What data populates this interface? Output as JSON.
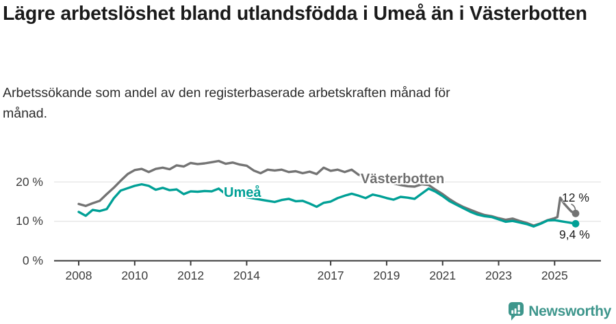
{
  "header": {
    "title": "Lägre arbetslöshet bland utlandsfödda i Umeå än i Västerbotten",
    "subtitle": "Arbetssökande som andel av den registerbaserade arbetskraften månad för månad."
  },
  "chart_data": {
    "type": "line",
    "unit": "%",
    "grid": "horizontal",
    "legend": "inline-labels",
    "x_range": [
      2008,
      2025.75
    ],
    "y_axis": {
      "range": [
        0,
        27
      ],
      "ticks": [
        {
          "v": 0,
          "label": "0 %"
        },
        {
          "v": 10,
          "label": "10 %"
        },
        {
          "v": 20,
          "label": "20 %"
        }
      ]
    },
    "x_axis": {
      "ticks": [
        {
          "t": 2008,
          "label": "2008"
        },
        {
          "t": 2010,
          "label": "2010"
        },
        {
          "t": 2012,
          "label": "2012"
        },
        {
          "t": 2014,
          "label": "2014"
        },
        {
          "t": 2017,
          "label": "2017"
        },
        {
          "t": 2019,
          "label": "2019"
        },
        {
          "t": 2021,
          "label": "2021"
        },
        {
          "t": 2023,
          "label": "2023"
        },
        {
          "t": 2025,
          "label": "2025"
        }
      ]
    },
    "series": [
      {
        "name": "vasterbotten",
        "label": "Västerbotten",
        "color": "#737373",
        "end_label": "12 %",
        "end_value": 12.0,
        "points": [
          [
            2008.0,
            14.4
          ],
          [
            2008.25,
            13.9
          ],
          [
            2008.5,
            14.6
          ],
          [
            2008.75,
            15.2
          ],
          [
            2009.0,
            16.9
          ],
          [
            2009.25,
            18.5
          ],
          [
            2009.5,
            20.3
          ],
          [
            2009.75,
            22.0
          ],
          [
            2010.0,
            23.0
          ],
          [
            2010.25,
            23.3
          ],
          [
            2010.5,
            22.5
          ],
          [
            2010.75,
            23.3
          ],
          [
            2011.0,
            23.6
          ],
          [
            2011.25,
            23.2
          ],
          [
            2011.5,
            24.2
          ],
          [
            2011.75,
            23.9
          ],
          [
            2012.0,
            24.8
          ],
          [
            2012.25,
            24.5
          ],
          [
            2012.5,
            24.7
          ],
          [
            2012.75,
            25.0
          ],
          [
            2013.0,
            25.3
          ],
          [
            2013.25,
            24.6
          ],
          [
            2013.5,
            24.9
          ],
          [
            2013.75,
            24.4
          ],
          [
            2014.0,
            24.1
          ],
          [
            2014.25,
            22.9
          ],
          [
            2014.5,
            22.2
          ],
          [
            2014.75,
            23.1
          ],
          [
            2015.0,
            22.9
          ],
          [
            2015.25,
            23.1
          ],
          [
            2015.5,
            22.5
          ],
          [
            2015.75,
            22.7
          ],
          [
            2016.0,
            22.2
          ],
          [
            2016.25,
            22.6
          ],
          [
            2016.5,
            22.0
          ],
          [
            2016.75,
            23.6
          ],
          [
            2017.0,
            22.8
          ],
          [
            2017.25,
            23.1
          ],
          [
            2017.5,
            22.5
          ],
          [
            2017.75,
            23.1
          ],
          [
            2018.0,
            21.8
          ],
          [
            2018.25,
            21.4
          ],
          [
            2018.5,
            20.9
          ],
          [
            2018.75,
            20.4
          ],
          [
            2019.0,
            20.0
          ],
          [
            2019.25,
            19.6
          ],
          [
            2019.5,
            19.2
          ],
          [
            2019.75,
            18.9
          ],
          [
            2020.0,
            18.8
          ],
          [
            2020.25,
            19.4
          ],
          [
            2020.5,
            19.2
          ],
          [
            2020.75,
            18.0
          ],
          [
            2021.0,
            16.9
          ],
          [
            2021.25,
            15.6
          ],
          [
            2021.5,
            14.5
          ],
          [
            2021.75,
            13.6
          ],
          [
            2022.0,
            12.9
          ],
          [
            2022.25,
            12.2
          ],
          [
            2022.5,
            11.6
          ],
          [
            2022.75,
            11.3
          ],
          [
            2023.0,
            10.8
          ],
          [
            2023.25,
            10.4
          ],
          [
            2023.5,
            10.7
          ],
          [
            2023.75,
            10.1
          ],
          [
            2024.0,
            9.6
          ],
          [
            2024.25,
            8.9
          ],
          [
            2024.5,
            9.5
          ],
          [
            2024.75,
            10.3
          ],
          [
            2025.0,
            10.8
          ],
          [
            2025.1,
            11.1
          ],
          [
            2025.2,
            16.0
          ],
          [
            2025.35,
            14.4
          ],
          [
            2025.5,
            13.2
          ],
          [
            2025.6,
            12.5
          ],
          [
            2025.75,
            12.0
          ]
        ]
      },
      {
        "name": "umea",
        "label": "Umeå",
        "color": "#00A096",
        "end_label": "9,4 %",
        "end_value": 9.4,
        "points": [
          [
            2008.0,
            12.4
          ],
          [
            2008.25,
            11.4
          ],
          [
            2008.5,
            12.9
          ],
          [
            2008.75,
            12.6
          ],
          [
            2009.0,
            13.1
          ],
          [
            2009.25,
            15.8
          ],
          [
            2009.5,
            17.8
          ],
          [
            2009.75,
            18.4
          ],
          [
            2010.0,
            19.0
          ],
          [
            2010.25,
            19.4
          ],
          [
            2010.5,
            19.0
          ],
          [
            2010.75,
            18.0
          ],
          [
            2011.0,
            18.5
          ],
          [
            2011.25,
            17.9
          ],
          [
            2011.5,
            18.1
          ],
          [
            2011.75,
            16.9
          ],
          [
            2012.0,
            17.6
          ],
          [
            2012.25,
            17.5
          ],
          [
            2012.5,
            17.7
          ],
          [
            2012.75,
            17.6
          ],
          [
            2013.0,
            18.3
          ],
          [
            2013.25,
            16.9
          ],
          [
            2013.5,
            16.6
          ],
          [
            2013.75,
            16.3
          ],
          [
            2014.0,
            16.1
          ],
          [
            2014.25,
            15.8
          ],
          [
            2014.5,
            15.5
          ],
          [
            2014.75,
            15.2
          ],
          [
            2015.0,
            14.9
          ],
          [
            2015.25,
            15.4
          ],
          [
            2015.5,
            15.7
          ],
          [
            2015.75,
            15.1
          ],
          [
            2016.0,
            15.2
          ],
          [
            2016.25,
            14.5
          ],
          [
            2016.5,
            13.7
          ],
          [
            2016.75,
            14.7
          ],
          [
            2017.0,
            15.0
          ],
          [
            2017.25,
            15.9
          ],
          [
            2017.5,
            16.5
          ],
          [
            2017.75,
            17.0
          ],
          [
            2018.0,
            16.5
          ],
          [
            2018.25,
            15.9
          ],
          [
            2018.5,
            16.8
          ],
          [
            2018.75,
            16.4
          ],
          [
            2019.0,
            15.9
          ],
          [
            2019.25,
            15.5
          ],
          [
            2019.5,
            16.2
          ],
          [
            2019.75,
            16.0
          ],
          [
            2020.0,
            15.7
          ],
          [
            2020.25,
            17.0
          ],
          [
            2020.5,
            18.3
          ],
          [
            2020.75,
            17.5
          ],
          [
            2021.0,
            16.4
          ],
          [
            2021.25,
            15.1
          ],
          [
            2021.5,
            14.2
          ],
          [
            2021.75,
            13.3
          ],
          [
            2022.0,
            12.4
          ],
          [
            2022.25,
            11.7
          ],
          [
            2022.5,
            11.3
          ],
          [
            2022.75,
            11.1
          ],
          [
            2023.0,
            10.5
          ],
          [
            2023.25,
            9.9
          ],
          [
            2023.5,
            10.1
          ],
          [
            2023.75,
            9.7
          ],
          [
            2024.0,
            9.3
          ],
          [
            2024.25,
            8.7
          ],
          [
            2024.5,
            9.4
          ],
          [
            2024.75,
            10.2
          ],
          [
            2025.0,
            10.3
          ],
          [
            2025.25,
            10.0
          ],
          [
            2025.5,
            9.7
          ],
          [
            2025.75,
            9.4
          ]
        ]
      }
    ]
  },
  "logo": {
    "text": "Newsworthy",
    "icon": "newsworthy-bubble-chart-icon",
    "color": "#3E968C"
  }
}
